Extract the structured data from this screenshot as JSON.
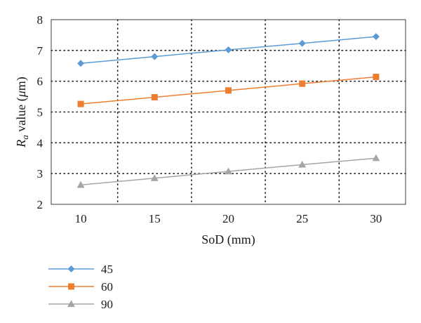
{
  "chart_data": {
    "type": "line",
    "title": "",
    "xlabel": "SoD (mm)",
    "ylabel_main": "R",
    "ylabel_sub": "a",
    "ylabel_rest": " value (",
    "ylabel_unit_mu": "μ",
    "ylabel_unit_m": "m)",
    "x": [
      10,
      15,
      20,
      25,
      30
    ],
    "x_ticks": [
      "10",
      "15",
      "20",
      "25",
      "30"
    ],
    "xlim": [
      8,
      32
    ],
    "ylim": [
      2,
      8
    ],
    "y_ticks": [
      "2",
      "3",
      "4",
      "5",
      "6",
      "7",
      "8"
    ],
    "grid": true,
    "legend_position": "bottom-left",
    "series": [
      {
        "name": "45",
        "values": [
          6.58,
          6.8,
          7.02,
          7.23,
          7.45
        ],
        "color": "#5b9bd5",
        "marker": "diamond"
      },
      {
        "name": "60",
        "values": [
          5.26,
          5.48,
          5.7,
          5.92,
          6.14
        ],
        "color": "#ed7d31",
        "marker": "square"
      },
      {
        "name": "90",
        "values": [
          2.63,
          2.85,
          3.07,
          3.29,
          3.5
        ],
        "color": "#a5a5a5",
        "marker": "triangle"
      }
    ]
  }
}
